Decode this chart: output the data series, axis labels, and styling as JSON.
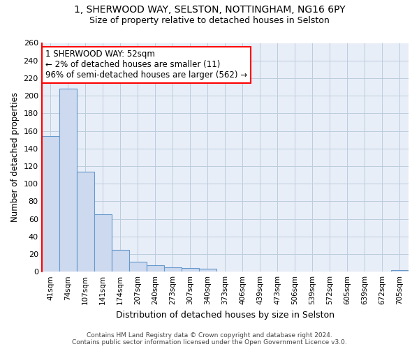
{
  "title_line1": "1, SHERWOOD WAY, SELSTON, NOTTINGHAM, NG16 6PY",
  "title_line2": "Size of property relative to detached houses in Selston",
  "xlabel": "Distribution of detached houses by size in Selston",
  "ylabel": "Number of detached properties",
  "bar_labels": [
    "41sqm",
    "74sqm",
    "107sqm",
    "141sqm",
    "174sqm",
    "207sqm",
    "240sqm",
    "273sqm",
    "307sqm",
    "340sqm",
    "373sqm",
    "406sqm",
    "439sqm",
    "473sqm",
    "506sqm",
    "539sqm",
    "572sqm",
    "605sqm",
    "639sqm",
    "672sqm",
    "705sqm"
  ],
  "bar_values": [
    154,
    208,
    114,
    65,
    25,
    11,
    7,
    5,
    4,
    3,
    0,
    0,
    0,
    0,
    0,
    0,
    0,
    0,
    0,
    0,
    2
  ],
  "bar_color": "#ccd9ee",
  "bar_edge_color": "#6699cc",
  "ylim": [
    0,
    260
  ],
  "yticks": [
    0,
    20,
    40,
    60,
    80,
    100,
    120,
    140,
    160,
    180,
    200,
    220,
    240,
    260
  ],
  "grid_color": "#bbccdd",
  "background_color": "#e8eef8",
  "annotation_text": "1 SHERWOOD WAY: 52sqm\n← 2% of detached houses are smaller (11)\n96% of semi-detached houses are larger (562) →",
  "annotation_box_color": "white",
  "annotation_box_edge_color": "red",
  "footer_text": "Contains HM Land Registry data © Crown copyright and database right 2024.\nContains public sector information licensed under the Open Government Licence v3.0.",
  "fig_width": 6.0,
  "fig_height": 5.0,
  "dpi": 100
}
